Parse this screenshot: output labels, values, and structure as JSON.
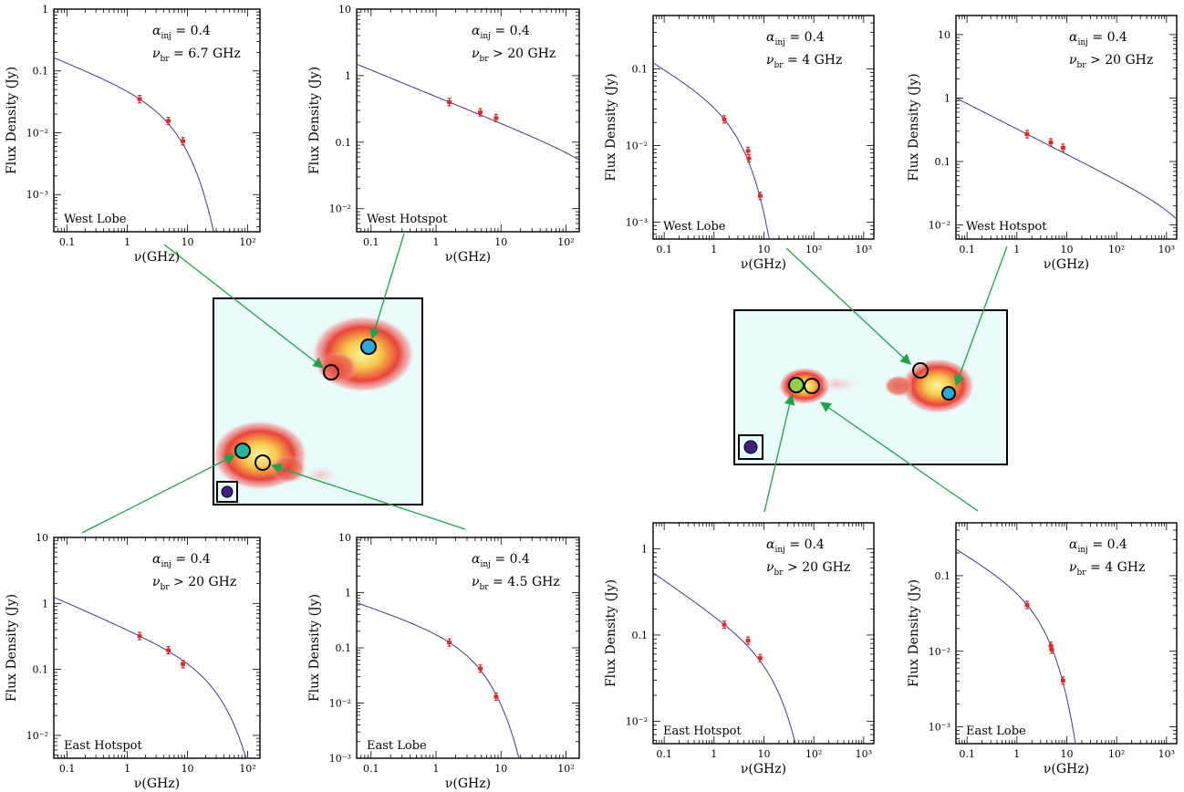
{
  "colors": {
    "model_curve": "#3a3a9a",
    "data_points": "#d62c2c",
    "arrow": "#22a04a",
    "map_background": "#e9fbfb",
    "beam_fill": "#3f1f80"
  },
  "maps": [
    {
      "markers": [
        {
          "name": "west-lobe-region",
          "fill": "none"
        },
        {
          "name": "west-hotspot-region",
          "fill": "#2aa8d6"
        },
        {
          "name": "east-hotspot-region",
          "fill": "#29b59a"
        },
        {
          "name": "east-lobe-region",
          "fill": "none"
        }
      ]
    },
    {
      "markers": [
        {
          "name": "west-lobe-region",
          "fill": "none"
        },
        {
          "name": "west-hotspot-region",
          "fill": "#2aa8d6"
        },
        {
          "name": "east-hotspot-region",
          "fill": "#8fd045"
        },
        {
          "name": "east-lobe-region",
          "fill": "none"
        }
      ]
    }
  ],
  "chart_data": [
    {
      "type": "line",
      "region": "West Lobe",
      "xlabel": "ν(GHz)",
      "ylabel": "Flux Density (Jy)",
      "xscale": "log",
      "yscale": "log",
      "xlim": [
        0.06,
        160
      ],
      "ylim": [
        0.00025,
        1
      ],
      "xticks": [
        "0.1",
        "1",
        "10",
        "10²"
      ],
      "yticks": [
        "1",
        "0.1",
        "10⁻²",
        "10⁻³"
      ],
      "alpha_inj_label": "α",
      "alpha_inj_sub": "inj",
      "alpha_inj_value": " = 0.4",
      "nu_br_label": "ν",
      "nu_br_sub": "br",
      "nu_br_value": " = 6.7 GHz",
      "model": {
        "A": 0.035,
        "alpha": 0.4,
        "nu_br": 6.7
      },
      "points": [
        {
          "x": 1.6,
          "y": 0.035
        },
        {
          "x": 4.8,
          "y": 0.0155
        },
        {
          "x": 8.4,
          "y": 0.0073
        }
      ]
    },
    {
      "type": "line",
      "region": "West Hotspot",
      "xlabel": "ν(GHz)",
      "ylabel": "Flux Density (Jy)",
      "xscale": "log",
      "yscale": "log",
      "xlim": [
        0.06,
        160
      ],
      "ylim": [
        0.0045,
        10
      ],
      "xticks": [
        "0.1",
        "1",
        "10",
        "10²"
      ],
      "yticks": [
        "10",
        "1",
        "0.1",
        "10⁻²"
      ],
      "alpha_inj_label": "α",
      "alpha_inj_sub": "inj",
      "alpha_inj_value": " = 0.4",
      "nu_br_label": "ν",
      "nu_br_sub": "br",
      "nu_br_value": " > 20 GHz",
      "model": {
        "A": 0.4,
        "alpha": 0.4,
        "nu_br": 1000
      },
      "points": [
        {
          "x": 1.6,
          "y": 0.4
        },
        {
          "x": 4.8,
          "y": 0.28
        },
        {
          "x": 8.4,
          "y": 0.23
        }
      ]
    },
    {
      "type": "line",
      "region": "East Hotspot",
      "xlabel": "ν(GHz)",
      "ylabel": "Flux Density (Jy)",
      "xscale": "log",
      "yscale": "log",
      "xlim": [
        0.06,
        160
      ],
      "ylim": [
        0.0045,
        10
      ],
      "xticks": [
        "0.1",
        "1",
        "10",
        "10²"
      ],
      "yticks": [
        "10",
        "1",
        "0.1",
        "10⁻²"
      ],
      "alpha_inj_label": "α",
      "alpha_inj_sub": "inj",
      "alpha_inj_value": " = 0.4",
      "nu_br_label": "ν",
      "nu_br_sub": "br",
      "nu_br_value": " > 20 GHz",
      "model": {
        "A": 0.32,
        "alpha": 0.4,
        "nu_br": 35
      },
      "points": [
        {
          "x": 1.6,
          "y": 0.32
        },
        {
          "x": 4.8,
          "y": 0.195
        },
        {
          "x": 8.4,
          "y": 0.12
        }
      ]
    },
    {
      "type": "line",
      "region": "East Lobe",
      "xlabel": "ν(GHz)",
      "ylabel": "Flux Density (Jy)",
      "xscale": "log",
      "yscale": "log",
      "xlim": [
        0.06,
        160
      ],
      "ylim": [
        0.001,
        10
      ],
      "xticks": [
        "0.1",
        "1",
        "10",
        "10²"
      ],
      "yticks": [
        "10",
        "1",
        "0.1",
        "10⁻²",
        "10⁻³"
      ],
      "alpha_inj_label": "α",
      "alpha_inj_sub": "inj",
      "alpha_inj_value": " = 0.4",
      "nu_br_label": "ν",
      "nu_br_sub": "br",
      "nu_br_value": " = 4.5 GHz",
      "model": {
        "A": 0.125,
        "alpha": 0.4,
        "nu_br": 4.5
      },
      "points": [
        {
          "x": 1.6,
          "y": 0.125
        },
        {
          "x": 4.8,
          "y": 0.042
        },
        {
          "x": 8.4,
          "y": 0.013
        }
      ]
    },
    {
      "type": "line",
      "region": "West Lobe",
      "xlabel": "ν(GHz)",
      "ylabel": "Flux Density (Jy)",
      "xscale": "log",
      "yscale": "log",
      "xlim": [
        0.06,
        1600
      ],
      "ylim": [
        0.0006,
        0.5
      ],
      "xticks": [
        "0.1",
        "1",
        "10",
        "10²",
        "10³"
      ],
      "yticks": [
        "0.1",
        "10⁻²",
        "10⁻³"
      ],
      "alpha_inj_label": "α",
      "alpha_inj_sub": "inj",
      "alpha_inj_value": " = 0.4",
      "nu_br_label": "ν",
      "nu_br_sub": "br",
      "nu_br_value": " = 4 GHz",
      "model": {
        "A": 0.022,
        "alpha": 0.4,
        "nu_br": 4
      },
      "points": [
        {
          "x": 1.6,
          "y": 0.022
        },
        {
          "x": 4.8,
          "y": 0.0085
        },
        {
          "x": 5.0,
          "y": 0.0068
        },
        {
          "x": 8.4,
          "y": 0.0022
        }
      ]
    },
    {
      "type": "line",
      "region": "West Hotspot",
      "xlabel": "ν(GHz)",
      "ylabel": "Flux Density (Jy)",
      "xscale": "log",
      "yscale": "log",
      "xlim": [
        0.06,
        1600
      ],
      "ylim": [
        0.006,
        20
      ],
      "xticks": [
        "0.1",
        "1",
        "10",
        "10²",
        "10³"
      ],
      "yticks": [
        "10",
        "1",
        "0.1",
        "10⁻²"
      ],
      "alpha_inj_label": "α",
      "alpha_inj_sub": "inj",
      "alpha_inj_value": " = 0.4",
      "nu_br_label": "ν",
      "nu_br_sub": "br",
      "nu_br_value": " > 20 GHz",
      "model": {
        "A": 0.27,
        "alpha": 0.4,
        "nu_br": 5000
      },
      "points": [
        {
          "x": 1.6,
          "y": 0.27
        },
        {
          "x": 4.8,
          "y": 0.2
        },
        {
          "x": 8.4,
          "y": 0.165
        }
      ]
    },
    {
      "type": "line",
      "region": "East Hotspot",
      "xlabel": "ν(GHz)",
      "ylabel": "Flux Density (Jy)",
      "xscale": "log",
      "yscale": "log",
      "xlim": [
        0.06,
        1600
      ],
      "ylim": [
        0.0055,
        2
      ],
      "xticks": [
        "0.1",
        "1",
        "10",
        "10²",
        "10³"
      ],
      "yticks": [
        "1",
        "0.1",
        "10⁻²"
      ],
      "alpha_inj_label": "α",
      "alpha_inj_sub": "inj",
      "alpha_inj_value": " = 0.4",
      "nu_br_label": "ν",
      "nu_br_sub": "br",
      "nu_br_value": " > 20 GHz",
      "model": {
        "A": 0.132,
        "alpha": 0.4,
        "nu_br": 22
      },
      "points": [
        {
          "x": 1.6,
          "y": 0.132
        },
        {
          "x": 4.8,
          "y": 0.086
        },
        {
          "x": 8.4,
          "y": 0.054
        }
      ]
    },
    {
      "type": "line",
      "region": "East Lobe",
      "xlabel": "ν(GHz)",
      "ylabel": "Flux Density (Jy)",
      "xscale": "log",
      "yscale": "log",
      "xlim": [
        0.06,
        1600
      ],
      "ylim": [
        0.0006,
        0.5
      ],
      "xticks": [
        "0.1",
        "1",
        "10",
        "10²",
        "10³"
      ],
      "yticks": [
        "0.1",
        "10⁻²",
        "10⁻³"
      ],
      "alpha_inj_label": "α",
      "alpha_inj_sub": "inj",
      "alpha_inj_value": " = 0.4",
      "nu_br_label": "ν",
      "nu_br_sub": "br",
      "nu_br_value": " = 4 GHz",
      "model": {
        "A": 0.041,
        "alpha": 0.4,
        "nu_br": 4
      },
      "points": [
        {
          "x": 1.6,
          "y": 0.041
        },
        {
          "x": 4.8,
          "y": 0.0118
        },
        {
          "x": 5.0,
          "y": 0.0105
        },
        {
          "x": 8.4,
          "y": 0.0041
        }
      ]
    }
  ]
}
